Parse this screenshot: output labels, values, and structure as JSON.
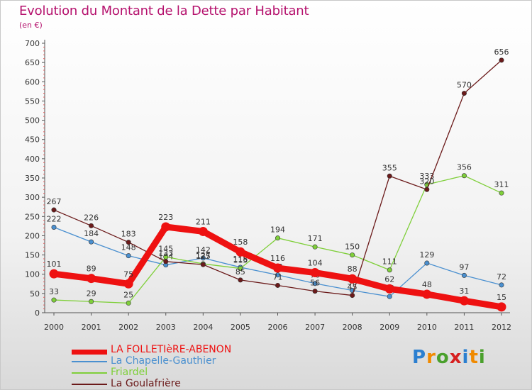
{
  "title": "Evolution du Montant de la Dette par Habitant",
  "subtitle": "(en €)",
  "logo": {
    "text": "Proxiti",
    "letters": [
      "P",
      "r",
      "o",
      "x",
      "i",
      "t",
      "i"
    ],
    "colors": [
      "#2b7fd0",
      "#f08a00",
      "#4aa02c",
      "#d62020",
      "#2b7fd0",
      "#f08a00",
      "#4aa02c"
    ]
  },
  "chart_data": {
    "type": "line",
    "title": "Evolution du Montant de la Dette par Habitant",
    "subtitle": "(en €)",
    "xlabel": "",
    "ylabel": "",
    "ylim": [
      0,
      700
    ],
    "yticks": [
      0,
      50,
      100,
      150,
      200,
      250,
      300,
      350,
      400,
      450,
      500,
      550,
      600,
      650,
      700
    ],
    "x": [
      "2000",
      "2001",
      "2002",
      "2003",
      "2004",
      "2005",
      "2006",
      "2007",
      "2008",
      "2009",
      "2010",
      "2011",
      "2012"
    ],
    "grid": false,
    "legend_position": "bottom-left",
    "series": [
      {
        "name": "La Chapelle-Gauthier",
        "color": "#4a90d0",
        "values": [
          222,
          184,
          148,
          124,
          142,
          118,
          98,
          76,
          58,
          42,
          129,
          97,
          72
        ]
      },
      {
        "name": "Friardel",
        "color": "#7fcf3a",
        "values": [
          33,
          29,
          25,
          145,
          127,
          115,
          194,
          171,
          150,
          111,
          333,
          356,
          311
        ]
      },
      {
        "name": "La Goulafrière",
        "color": "#6b1a1a",
        "values": [
          267,
          226,
          183,
          133,
          125,
          85,
          71,
          56,
          45,
          355,
          320,
          570,
          656
        ]
      },
      {
        "name": "LA FOLLETIèRE-ABENON",
        "color": "#ee1111",
        "values": [
          101,
          89,
          75,
          223,
          211,
          158,
          116,
          104,
          88,
          62,
          48,
          31,
          15
        ]
      }
    ]
  },
  "legend": [
    {
      "label": "LA FOLLETIèRE-ABENON",
      "color": "#ee1111",
      "thick": true
    },
    {
      "label": "La Chapelle-Gauthier",
      "color": "#4a90d0",
      "thick": false
    },
    {
      "label": "Friardel",
      "color": "#7fcf3a",
      "thick": false
    },
    {
      "label": "La Goulafrière",
      "color": "#6b1a1a",
      "thick": false
    }
  ]
}
